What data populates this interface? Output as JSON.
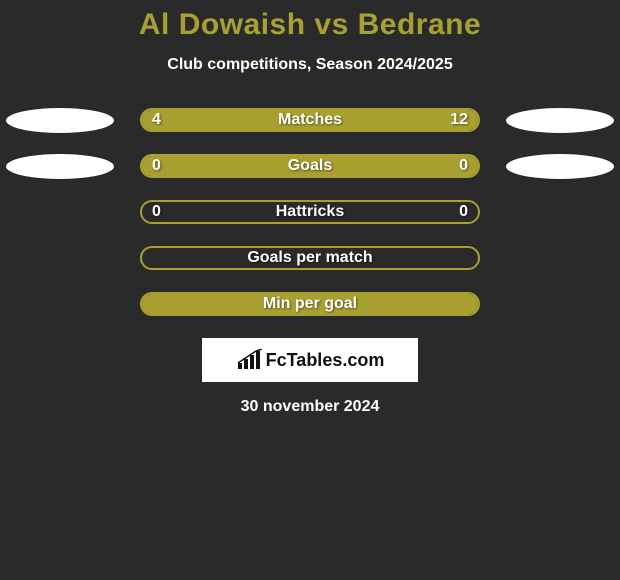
{
  "title": "Al Dowaish vs Bedrane",
  "subtitle": "Club competitions, Season 2024/2025",
  "date": "30 november 2024",
  "logo_text": "FcTables.com",
  "colors": {
    "background": "#2a2a2a",
    "accent": "#a8a030",
    "text": "#ffffff",
    "ellipse": "#ffffff",
    "logo_bg": "#ffffff",
    "logo_text": "#111111"
  },
  "ellipses": {
    "row0": {
      "left": true,
      "right": true
    },
    "row1": {
      "left": true,
      "right": true
    }
  },
  "bars": [
    {
      "label": "Matches",
      "left_value": "4",
      "right_value": "12",
      "fill_left_pct": 0,
      "fill_width_pct": 100
    },
    {
      "label": "Goals",
      "left_value": "0",
      "right_value": "0",
      "fill_left_pct": 0,
      "fill_width_pct": 100
    },
    {
      "label": "Hattricks",
      "left_value": "0",
      "right_value": "0",
      "fill_left_pct": 0,
      "fill_width_pct": 0
    },
    {
      "label": "Goals per match",
      "left_value": "",
      "right_value": "",
      "fill_left_pct": 0,
      "fill_width_pct": 0
    },
    {
      "label": "Min per goal",
      "left_value": "",
      "right_value": "",
      "fill_left_pct": 0,
      "fill_width_pct": 100
    }
  ]
}
